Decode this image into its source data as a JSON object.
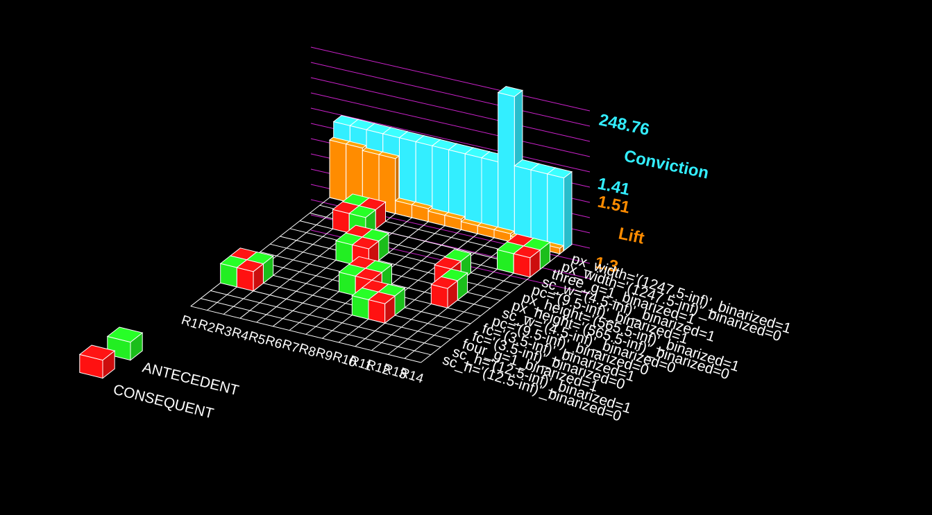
{
  "chart_data": {
    "type": "bar",
    "view": "3d-matrix",
    "metrics": [
      {
        "name": "Conviction",
        "color": "#33eeff",
        "max_label": "248.76",
        "min_label": "1.41",
        "values": [
          1.41,
          1.41,
          1.41,
          1.41,
          1.41,
          1.41,
          1.41,
          1.41,
          1.41,
          1.41,
          248.76,
          1.41,
          1.41,
          1.41
        ]
      },
      {
        "name": "Lift",
        "color": "#ff8c00",
        "max_label": "1.51",
        "min_label": "1.3",
        "values": [
          1.51,
          1.51,
          1.5,
          1.5,
          1.33,
          1.33,
          1.32,
          1.32,
          1.31,
          1.31,
          1.31,
          1.3,
          1.3,
          1.3
        ]
      }
    ],
    "legend": {
      "antecedent": {
        "label": "ANTECEDENT",
        "color": "#22ee22"
      },
      "consequent": {
        "label": "CONSEQUENT",
        "color": "#ff1111"
      }
    },
    "rules": [
      "R1",
      "R2",
      "R3",
      "R4",
      "R5",
      "R6",
      "R7",
      "R8",
      "R9",
      "R10",
      "R11",
      "R12",
      "R13",
      "R14"
    ],
    "rule_labels_drawn": [
      "R14",
      "R13",
      "R12",
      "R11",
      "R10",
      "R9",
      "R8",
      "R7",
      "R6",
      "R5",
      "R4",
      "R3",
      "R2",
      "R1"
    ],
    "items": [
      "px_width='(1247.5-inf)'_binarized=1",
      "px_width='(1247.5-inf)'_binarized=0",
      "three_g=1_binarized=1",
      "sc_w='(4.5-inf)'_binarized=1",
      "pc='(9.5-inf)'_binarized=1",
      "px_height='(565.5-inf)'_binarized=1",
      "px_height='(565.5-inf)'_binarized=0",
      "sc_w='(4.5-inf)'_binarized=0",
      "pc='(9.5-inf)'_binarized=0",
      "fc='(3.5-inf)'_binarized=1",
      "fc='(3.5-inf)'_binarized=0",
      "four_g=1_binarized=1",
      "sc_h='(12.5-inf)'_binarized=1",
      "sc_h='(12.5-inf)'_binarized=0"
    ],
    "cells": [
      {
        "rule": 0,
        "item": 9,
        "role": "consequent"
      },
      {
        "rule": 0,
        "item": 10,
        "role": "antecedent"
      },
      {
        "rule": 1,
        "item": 9,
        "role": "antecedent"
      },
      {
        "rule": 1,
        "item": 10,
        "role": "consequent"
      },
      {
        "rule": 2,
        "item": 1,
        "role": "antecedent"
      },
      {
        "rule": 2,
        "item": 2,
        "role": "consequent"
      },
      {
        "rule": 3,
        "item": 1,
        "role": "consequent"
      },
      {
        "rule": 3,
        "item": 2,
        "role": "antecedent"
      },
      {
        "rule": 4,
        "item": 4,
        "role": "consequent"
      },
      {
        "rule": 4,
        "item": 5,
        "role": "antecedent"
      },
      {
        "rule": 5,
        "item": 4,
        "role": "antecedent"
      },
      {
        "rule": 5,
        "item": 5,
        "role": "consequent"
      },
      {
        "rule": 6,
        "item": 7,
        "role": "consequent"
      },
      {
        "rule": 6,
        "item": 8,
        "role": "antecedent"
      },
      {
        "rule": 7,
        "item": 7,
        "role": "antecedent"
      },
      {
        "rule": 7,
        "item": 8,
        "role": "consequent"
      },
      {
        "rule": 8,
        "item": 9,
        "role": "consequent"
      },
      {
        "rule": 8,
        "item": 10,
        "role": "antecedent"
      },
      {
        "rule": 9,
        "item": 9,
        "role": "antecedent"
      },
      {
        "rule": 9,
        "item": 10,
        "role": "consequent"
      },
      {
        "rule": 10,
        "item": 4,
        "role": "antecedent"
      },
      {
        "rule": 10,
        "item": 5,
        "role": "consequent"
      },
      {
        "rule": 11,
        "item": 6,
        "role": "antecedent"
      },
      {
        "rule": 11,
        "item": 7,
        "role": "consequent"
      },
      {
        "rule": 12,
        "item": 1,
        "role": "consequent"
      },
      {
        "rule": 12,
        "item": 2,
        "role": "antecedent"
      },
      {
        "rule": 13,
        "item": 1,
        "role": "antecedent"
      },
      {
        "rule": 13,
        "item": 2,
        "role": "consequent"
      }
    ]
  }
}
